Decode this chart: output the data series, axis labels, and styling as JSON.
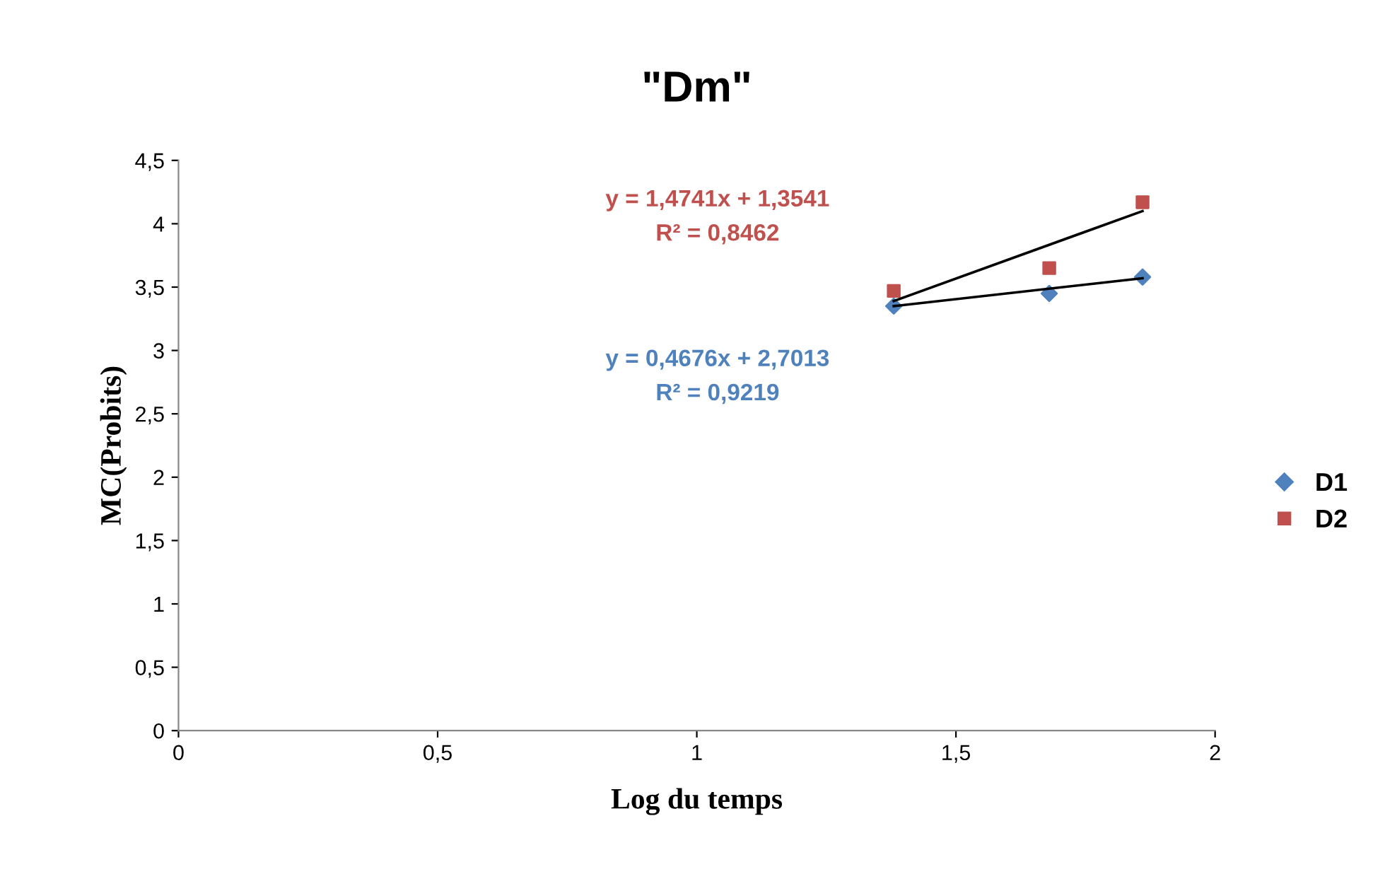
{
  "chart_data": {
    "type": "scatter",
    "title": "\"Dm\"",
    "xlabel": "Log du temps",
    "ylabel": "MC(Probits)",
    "series": [
      {
        "name": "D1",
        "color": "#4f81bd",
        "marker": "diamond",
        "x": [
          1.38,
          1.68,
          1.86
        ],
        "values": [
          3.35,
          3.45,
          3.58
        ]
      },
      {
        "name": "D2",
        "color": "#c0504d",
        "marker": "square",
        "x": [
          1.38,
          1.68,
          1.86
        ],
        "values": [
          3.47,
          3.65,
          4.17
        ]
      },
      {
        "type": "line",
        "color": "#000000",
        "x": [
          1.38,
          1.86
        ],
        "values": [
          3.35,
          3.57
        ]
      },
      {
        "type": "line",
        "color": "#000000",
        "x": [
          1.38,
          1.86
        ],
        "values": [
          3.39,
          4.1
        ]
      }
    ],
    "annotations": [
      "y = 1,4741x + 1,3541",
      "R² = 0,8462",
      "y = 0,4676x + 2,7013",
      "R² = 0,9219"
    ],
    "xlim": [
      0,
      2
    ],
    "xticks": [
      0,
      {
        "value": 0.5,
        "label": "0,5"
      },
      1,
      {
        "value": 1.5,
        "label": "1,5"
      },
      2
    ],
    "ylim": [
      0,
      4.5
    ],
    "yticks": [
      0,
      {
        "value": 0.5,
        "label": "0,5"
      },
      1,
      {
        "value": 1.5,
        "label": "1,5"
      },
      2,
      {
        "value": 2.5,
        "label": "2,5"
      },
      3,
      {
        "value": 3.5,
        "label": "3,5"
      },
      4,
      {
        "value": 4.5,
        "label": "4,5"
      }
    ],
    "grid": false,
    "legend": "right"
  }
}
